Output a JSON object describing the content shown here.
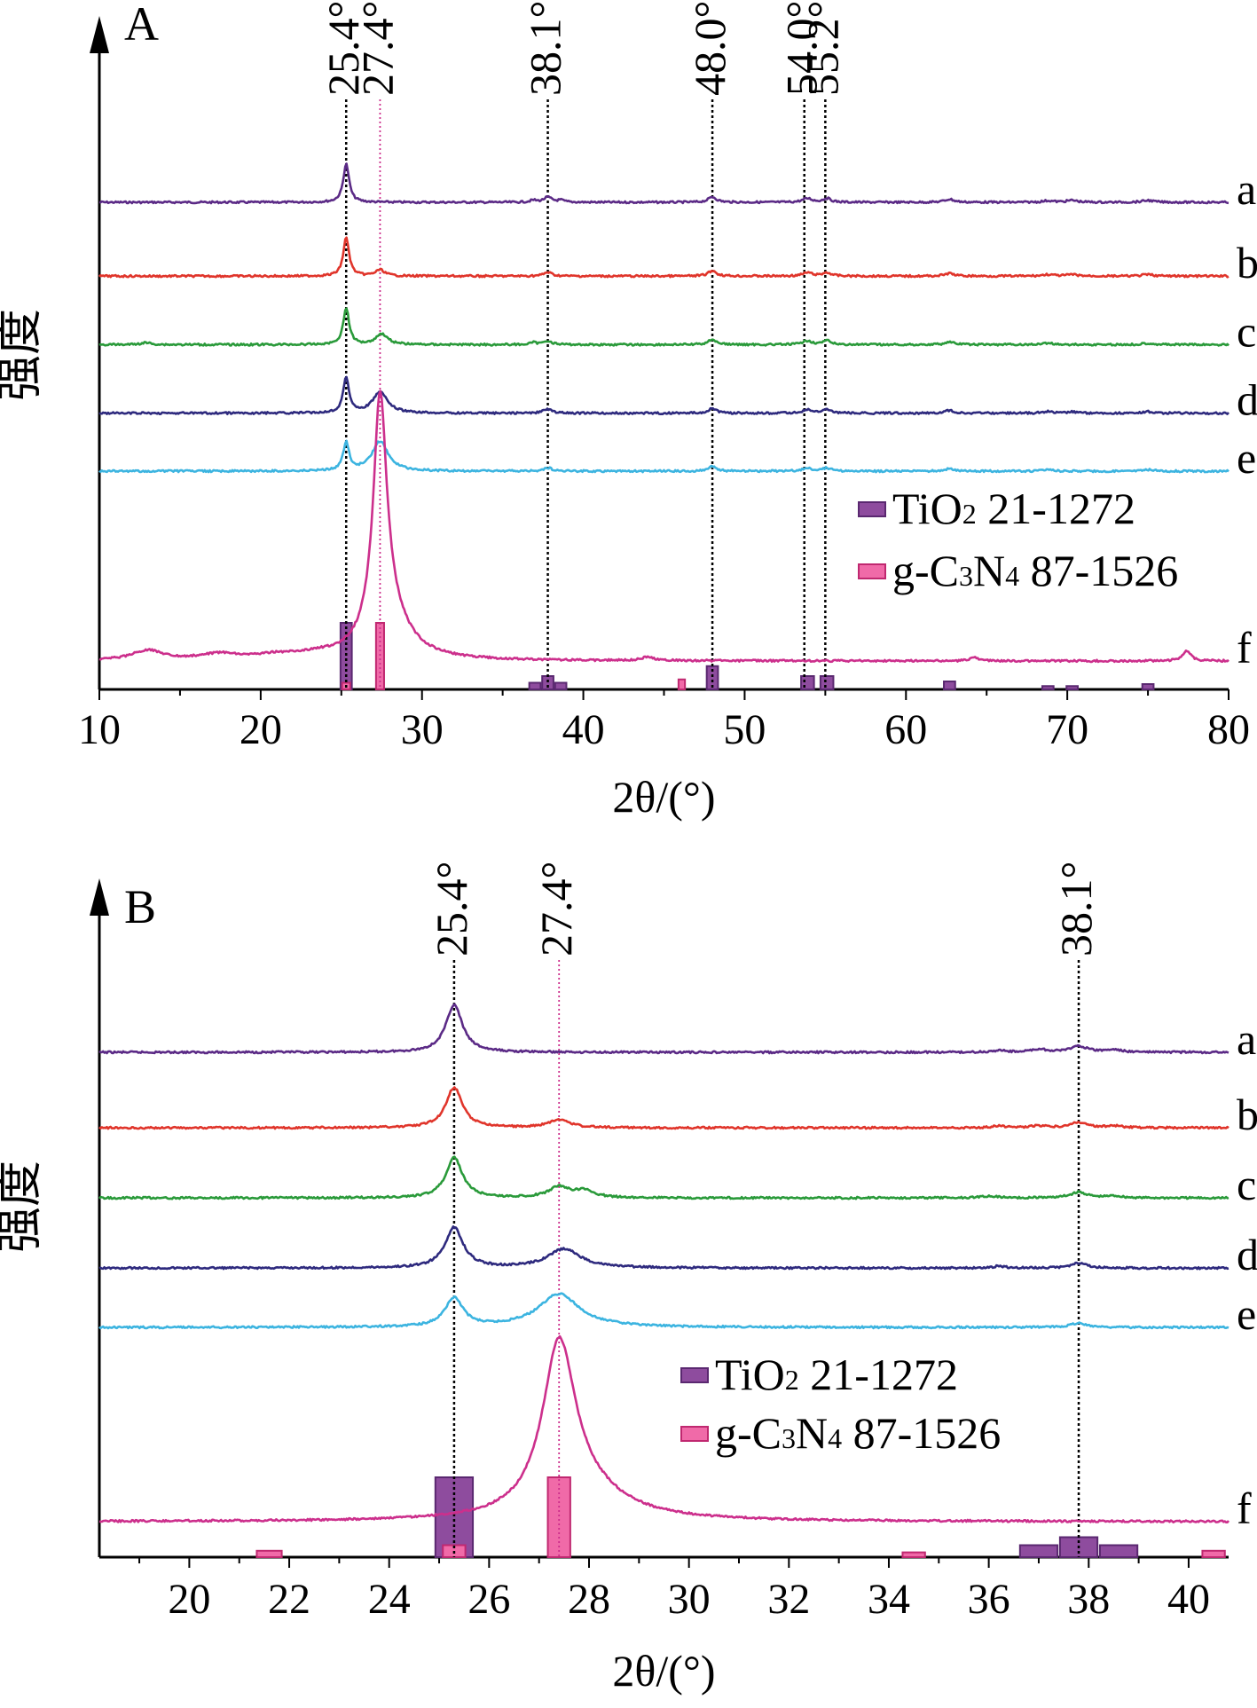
{
  "figure": {
    "colors": {
      "a": "#5b2a86",
      "b": "#e0352b",
      "c": "#2a9a3a",
      "d": "#2e2a7e",
      "e": "#3cb4e0",
      "f": "#cc2f8c",
      "ref_tio2_fill": "#8e4c9e",
      "ref_tio2_stroke": "#5a2870",
      "ref_gcn_fill": "#f06aa8",
      "ref_gcn_stroke": "#c02870",
      "guide_tio2": "#000000",
      "guide_gcn": "#cc2f8c",
      "axis": "#000000"
    }
  },
  "chart_data": [
    {
      "panel_label": "A",
      "type": "line",
      "xlabel": "2θ/(°)",
      "ylabel": "强度",
      "xlim": [
        10,
        80
      ],
      "x_ticks": [
        10,
        20,
        30,
        40,
        50,
        60,
        70,
        80
      ],
      "grid": false,
      "legend": {
        "placement": "right",
        "entries": [
          {
            "key": "tio2",
            "name": "TiO",
            "sub": "2",
            "suffix": " 21-1272"
          },
          {
            "key": "gcn",
            "name": "g-C",
            "sub": "3",
            "mid": "N",
            "sub2": "4",
            "suffix": " 87-1526"
          }
        ]
      },
      "peak_labels": [
        {
          "x": 25.4,
          "text": "25.4°",
          "phase": "tio2"
        },
        {
          "x": 27.4,
          "text": "27.4°",
          "phase": "gcn"
        },
        {
          "x": 38.1,
          "text": "38.1°",
          "phase": "tio2"
        },
        {
          "x": 48.0,
          "text": "48.0°",
          "phase": "tio2"
        },
        {
          "x": 54.0,
          "text": "54.0°",
          "phase": "tio2"
        },
        {
          "x": 55.2,
          "text": "55.2°",
          "phase": "tio2"
        }
      ],
      "series": [
        {
          "label": "a",
          "baseline": 0.92,
          "peaks": [
            [
              25.3,
              1.0,
              0.22
            ],
            [
              36.9,
              0.05,
              0.25
            ],
            [
              37.8,
              0.13,
              0.3
            ],
            [
              38.6,
              0.05,
              0.25
            ],
            [
              48.0,
              0.14,
              0.3
            ],
            [
              53.9,
              0.1,
              0.35
            ],
            [
              55.1,
              0.1,
              0.3
            ],
            [
              62.7,
              0.08,
              0.35
            ],
            [
              68.8,
              0.04,
              0.4
            ],
            [
              70.3,
              0.05,
              0.4
            ],
            [
              75.0,
              0.05,
              0.4
            ]
          ]
        },
        {
          "label": "b",
          "baseline": 0.78,
          "peaks": [
            [
              25.3,
              1.0,
              0.22
            ],
            [
              27.4,
              0.16,
              0.35
            ],
            [
              37.8,
              0.1,
              0.3
            ],
            [
              48.0,
              0.14,
              0.3
            ],
            [
              53.9,
              0.09,
              0.35
            ],
            [
              55.1,
              0.09,
              0.3
            ],
            [
              62.7,
              0.07,
              0.35
            ],
            [
              68.8,
              0.04,
              0.4
            ],
            [
              70.3,
              0.04,
              0.4
            ],
            [
              75.0,
              0.04,
              0.4
            ]
          ]
        },
        {
          "label": "c",
          "baseline": 0.65,
          "peaks": [
            [
              12.9,
              0.05,
              0.4
            ],
            [
              25.3,
              0.95,
              0.22
            ],
            [
              27.5,
              0.28,
              0.45
            ],
            [
              36.9,
              0.05,
              0.25
            ],
            [
              37.8,
              0.1,
              0.3
            ],
            [
              48.0,
              0.14,
              0.3
            ],
            [
              53.9,
              0.1,
              0.35
            ],
            [
              55.1,
              0.1,
              0.3
            ],
            [
              62.7,
              0.07,
              0.35
            ],
            [
              68.8,
              0.04,
              0.4
            ],
            [
              75.0,
              0.04,
              0.4
            ]
          ]
        },
        {
          "label": "d",
          "baseline": 0.52,
          "peaks": [
            [
              25.3,
              0.92,
              0.22
            ],
            [
              27.4,
              0.55,
              0.55
            ],
            [
              37.8,
              0.11,
              0.3
            ],
            [
              48.0,
              0.13,
              0.3
            ],
            [
              53.9,
              0.09,
              0.35
            ],
            [
              55.1,
              0.09,
              0.3
            ],
            [
              62.7,
              0.07,
              0.35
            ],
            [
              68.8,
              0.04,
              0.4
            ],
            [
              70.3,
              0.04,
              0.4
            ],
            [
              75.0,
              0.04,
              0.4
            ]
          ]
        },
        {
          "label": "e",
          "baseline": 0.41,
          "peaks": [
            [
              25.3,
              0.72,
              0.22
            ],
            [
              27.4,
              0.78,
              0.6
            ],
            [
              37.8,
              0.09,
              0.3
            ],
            [
              48.0,
              0.12,
              0.3
            ],
            [
              53.9,
              0.08,
              0.35
            ],
            [
              55.1,
              0.08,
              0.3
            ],
            [
              62.7,
              0.07,
              0.35
            ],
            [
              68.8,
              0.04,
              0.4
            ],
            [
              75.0,
              0.04,
              0.4
            ]
          ]
        },
        {
          "label": "f",
          "baseline": 0.05,
          "peaks": [
            [
              13.0,
              0.2,
              1.2
            ],
            [
              17.5,
              0.12,
              1.5
            ],
            [
              21.0,
              0.08,
              1.5
            ],
            [
              23.5,
              0.08,
              1.5
            ],
            [
              27.4,
              4.8,
              0.5
            ],
            [
              27.9,
              0.8,
              1.5
            ],
            [
              44.0,
              0.08,
              0.4
            ],
            [
              64.2,
              0.08,
              0.3
            ],
            [
              77.4,
              0.22,
              0.3
            ]
          ]
        }
      ],
      "reference_bars": [
        {
          "phase": "tio2",
          "x": 25.3,
          "height": 1.0,
          "width": 0.7
        },
        {
          "phase": "tio2",
          "x": 37.0,
          "height": 0.1,
          "width": 0.7
        },
        {
          "phase": "tio2",
          "x": 37.8,
          "height": 0.2,
          "width": 0.7
        },
        {
          "phase": "tio2",
          "x": 38.6,
          "height": 0.1,
          "width": 0.7
        },
        {
          "phase": "tio2",
          "x": 48.0,
          "height": 0.35,
          "width": 0.7
        },
        {
          "phase": "tio2",
          "x": 53.9,
          "height": 0.2,
          "width": 0.8
        },
        {
          "phase": "tio2",
          "x": 55.1,
          "height": 0.2,
          "width": 0.8
        },
        {
          "phase": "tio2",
          "x": 62.7,
          "height": 0.12,
          "width": 0.7
        },
        {
          "phase": "tio2",
          "x": 68.8,
          "height": 0.05,
          "width": 0.7
        },
        {
          "phase": "tio2",
          "x": 70.3,
          "height": 0.05,
          "width": 0.7
        },
        {
          "phase": "tio2",
          "x": 75.0,
          "height": 0.08,
          "width": 0.7
        },
        {
          "phase": "gcn",
          "x": 25.3,
          "height": 0.1,
          "width": 0.5
        },
        {
          "phase": "gcn",
          "x": 27.4,
          "height": 1.0,
          "width": 0.5
        },
        {
          "phase": "gcn",
          "x": 46.1,
          "height": 0.15,
          "width": 0.4
        }
      ]
    },
    {
      "panel_label": "B",
      "type": "line",
      "xlabel": "2θ/(°)",
      "ylabel": "强度",
      "xlim": [
        18.2,
        40.8
      ],
      "x_ticks": [
        20,
        22,
        24,
        26,
        28,
        30,
        32,
        34,
        36,
        38,
        40
      ],
      "grid": false,
      "legend": {
        "placement": "center",
        "entries": [
          {
            "key": "tio2",
            "name": "TiO",
            "sub": "2",
            "suffix": " 21-1272"
          },
          {
            "key": "gcn",
            "name": "g-C",
            "sub": "3",
            "mid": "N",
            "sub2": "4",
            "suffix": " 87-1526"
          }
        ]
      },
      "peak_labels": [
        {
          "x": 25.4,
          "text": "25.4°",
          "phase": "tio2"
        },
        {
          "x": 27.4,
          "text": "27.4°",
          "phase": "gcn"
        },
        {
          "x": 38.1,
          "text": "38.1°",
          "phase": "tio2"
        }
      ],
      "series": [
        {
          "label": "a",
          "baseline": 0.92,
          "peaks": [
            [
              25.3,
              1.0,
              0.2
            ],
            [
              36.2,
              0.04,
              0.15
            ],
            [
              37.0,
              0.06,
              0.2
            ],
            [
              37.8,
              0.13,
              0.2
            ],
            [
              38.5,
              0.05,
              0.2
            ]
          ]
        },
        {
          "label": "b",
          "baseline": 0.78,
          "peaks": [
            [
              25.3,
              0.85,
              0.2
            ],
            [
              27.4,
              0.17,
              0.25
            ],
            [
              36.2,
              0.04,
              0.15
            ],
            [
              37.0,
              0.04,
              0.2
            ],
            [
              37.8,
              0.11,
              0.2
            ],
            [
              38.5,
              0.04,
              0.2
            ]
          ]
        },
        {
          "label": "c",
          "baseline": 0.65,
          "peaks": [
            [
              25.3,
              0.85,
              0.2
            ],
            [
              27.4,
              0.22,
              0.25
            ],
            [
              27.9,
              0.14,
              0.25
            ],
            [
              36.0,
              0.04,
              0.2
            ],
            [
              37.8,
              0.12,
              0.2
            ],
            [
              38.5,
              0.04,
              0.2
            ]
          ]
        },
        {
          "label": "d",
          "baseline": 0.52,
          "peaks": [
            [
              25.3,
              0.85,
              0.22
            ],
            [
              27.5,
              0.4,
              0.4
            ],
            [
              36.2,
              0.04,
              0.15
            ],
            [
              37.8,
              0.1,
              0.2
            ]
          ]
        },
        {
          "label": "e",
          "baseline": 0.41,
          "peaks": [
            [
              25.3,
              0.6,
              0.22
            ],
            [
              27.4,
              0.7,
              0.5
            ],
            [
              37.8,
              0.09,
              0.2
            ]
          ]
        },
        {
          "label": "f",
          "baseline": 0.05,
          "peaks": [
            [
              27.4,
              3.3,
              0.4
            ],
            [
              27.9,
              0.5,
              1.0
            ]
          ]
        }
      ],
      "reference_bars": [
        {
          "phase": "tio2",
          "x": 25.3,
          "height": 1.0,
          "width": 0.75
        },
        {
          "phase": "tio2",
          "x": 37.0,
          "height": 0.15,
          "width": 0.75
        },
        {
          "phase": "tio2",
          "x": 37.8,
          "height": 0.25,
          "width": 0.75
        },
        {
          "phase": "tio2",
          "x": 38.6,
          "height": 0.15,
          "width": 0.75
        },
        {
          "phase": "gcn",
          "x": 21.6,
          "height": 0.08,
          "width": 0.5
        },
        {
          "phase": "gcn",
          "x": 25.3,
          "height": 0.15,
          "width": 0.45
        },
        {
          "phase": "gcn",
          "x": 27.4,
          "height": 1.0,
          "width": 0.45
        },
        {
          "phase": "gcn",
          "x": 34.5,
          "height": 0.06,
          "width": 0.45
        },
        {
          "phase": "gcn",
          "x": 40.5,
          "height": 0.08,
          "width": 0.45
        }
      ]
    }
  ]
}
